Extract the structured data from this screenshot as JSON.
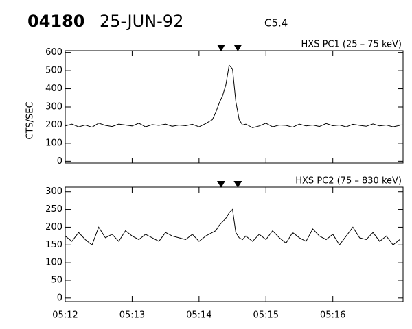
{
  "header": {
    "orbit": "04180",
    "date": "25-JUN-92",
    "flare_class": "C5.4"
  },
  "chart_data": [
    {
      "type": "line",
      "label": "HXS PC1 (25 – 75 keV)",
      "ylabel": "CTS/SEC",
      "color": "#000000",
      "x": [
        312.0,
        312.1,
        312.2,
        312.3,
        312.4,
        312.5,
        312.6,
        312.7,
        312.8,
        312.9,
        313.0,
        313.1,
        313.2,
        313.3,
        313.4,
        313.5,
        313.6,
        313.7,
        313.8,
        313.9,
        314.0,
        314.1,
        314.2,
        314.25,
        314.3,
        314.35,
        314.4,
        314.45,
        314.5,
        314.55,
        314.6,
        314.65,
        314.7,
        314.8,
        314.9,
        315.0,
        315.1,
        315.2,
        315.3,
        315.4,
        315.5,
        315.6,
        315.7,
        315.8,
        315.9,
        316.0,
        316.1,
        316.2,
        316.3,
        316.4,
        316.5,
        316.6,
        316.7,
        316.8,
        316.9,
        317.0
      ],
      "values": [
        195,
        205,
        190,
        200,
        188,
        210,
        198,
        192,
        205,
        200,
        195,
        210,
        190,
        202,
        198,
        205,
        193,
        200,
        196,
        204,
        190,
        208,
        230,
        270,
        320,
        360,
        420,
        530,
        510,
        330,
        230,
        200,
        205,
        185,
        195,
        210,
        190,
        200,
        198,
        188,
        205,
        195,
        200,
        192,
        208,
        196,
        200,
        190,
        204,
        198,
        193,
        206,
        195,
        200,
        190,
        198
      ],
      "markers": [
        314.33,
        314.58
      ],
      "xlim": [
        312,
        317.05
      ],
      "xticks": [
        312,
        313,
        314,
        315,
        316
      ],
      "ylim": [
        -10,
        610
      ],
      "yticks": [
        0,
        100,
        200,
        300,
        400,
        500,
        600
      ]
    },
    {
      "type": "line",
      "label": "HXS PC2 (75 – 830 keV)",
      "color": "#000000",
      "x": [
        312.0,
        312.1,
        312.2,
        312.3,
        312.4,
        312.5,
        312.6,
        312.7,
        312.8,
        312.9,
        313.0,
        313.1,
        313.2,
        313.3,
        313.4,
        313.5,
        313.6,
        313.7,
        313.8,
        313.9,
        314.0,
        314.1,
        314.2,
        314.25,
        314.3,
        314.35,
        314.4,
        314.45,
        314.5,
        314.55,
        314.6,
        314.65,
        314.7,
        314.8,
        314.9,
        315.0,
        315.1,
        315.2,
        315.3,
        315.4,
        315.5,
        315.6,
        315.7,
        315.8,
        315.9,
        316.0,
        316.1,
        316.2,
        316.3,
        316.4,
        316.5,
        316.6,
        316.7,
        316.8,
        316.9,
        317.0
      ],
      "values": [
        175,
        160,
        185,
        165,
        150,
        200,
        170,
        180,
        160,
        190,
        175,
        165,
        180,
        170,
        160,
        185,
        175,
        170,
        165,
        180,
        160,
        175,
        185,
        190,
        205,
        215,
        225,
        240,
        250,
        185,
        170,
        165,
        175,
        160,
        180,
        165,
        190,
        170,
        155,
        185,
        170,
        160,
        195,
        175,
        165,
        180,
        150,
        175,
        200,
        170,
        165,
        185,
        160,
        175,
        150,
        165
      ],
      "markers": [
        314.33,
        314.58
      ],
      "xlim": [
        312,
        317.05
      ],
      "xticks": [
        {
          "value": 312,
          "label": "05:12"
        },
        {
          "value": 313,
          "label": "05:13"
        },
        {
          "value": 314,
          "label": "05:14"
        },
        {
          "value": 315,
          "label": "05:15"
        },
        {
          "value": 316,
          "label": "05:16"
        }
      ],
      "ylim": [
        -10,
        313
      ],
      "yticks": [
        0,
        50,
        100,
        150,
        200,
        250,
        300
      ]
    }
  ]
}
